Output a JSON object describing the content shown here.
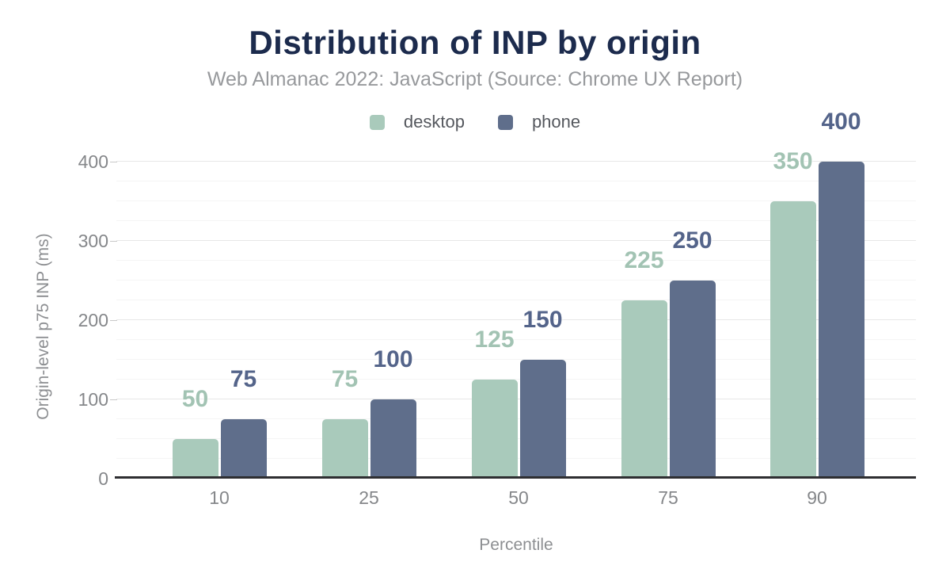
{
  "header": {
    "title": "Distribution of INP by origin",
    "subtitle": "Web Almanac 2022: JavaScript (Source: Chrome UX Report)"
  },
  "legend": {
    "items": [
      {
        "label": "desktop",
        "color": "#a9cabb"
      },
      {
        "label": "phone",
        "color": "#5f6e8b"
      }
    ]
  },
  "axes": {
    "xlabel": "Percentile",
    "ylabel": "Origin-level p75 INP (ms)"
  },
  "chart_data": {
    "type": "bar",
    "title": "Distribution of INP by origin",
    "subtitle": "Web Almanac 2022: JavaScript (Source: Chrome UX Report)",
    "categories": [
      "10",
      "25",
      "50",
      "75",
      "90"
    ],
    "series": [
      {
        "name": "desktop",
        "color": "#a9cabb",
        "label_color": "#a2c3b3",
        "values": [
          50,
          75,
          125,
          225,
          350
        ],
        "data_labels": [
          "50",
          "75",
          "125",
          "225",
          "350"
        ]
      },
      {
        "name": "phone",
        "color": "#5f6e8b",
        "label_color": "#54648a",
        "values": [
          75,
          100,
          150,
          250,
          400
        ],
        "data_labels": [
          "75",
          "100",
          "150",
          "250",
          "400"
        ]
      }
    ],
    "xlabel": "Percentile",
    "ylabel": "Origin-level p75 INP (ms)",
    "ylim": [
      0,
      420
    ],
    "yticks": [
      0,
      100,
      200,
      300,
      400
    ],
    "ytick_labels": [
      "0",
      "100",
      "200",
      "300",
      "400"
    ],
    "minor_grid_step": 25,
    "grid": true,
    "legend_position": "top",
    "colors": {
      "title": "#1c2b4d",
      "subtitle": "#97999c",
      "axis_line": "#2e2e31",
      "tick_text": "#85878a",
      "major_grid": "#e7e7e7",
      "minor_grid": "#f5f5f5"
    }
  }
}
